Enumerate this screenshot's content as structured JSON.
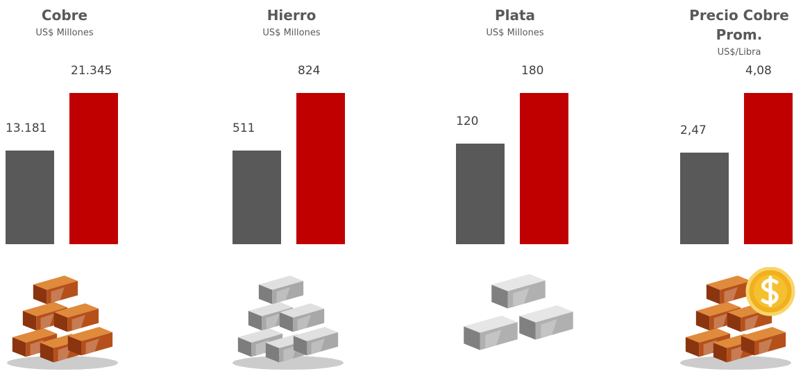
{
  "chart_data": [
    {
      "type": "bar",
      "title": "Cobre",
      "subtitle": "US$ Millones",
      "values": [
        13181,
        21345
      ],
      "value_labels": [
        "13.181",
        "21.345"
      ],
      "colors": [
        "#595959",
        "#c00000"
      ]
    },
    {
      "type": "bar",
      "title": "Hierro",
      "subtitle": "US$ Millones",
      "values": [
        511,
        824
      ],
      "colors": [
        "#595959",
        "#c00000"
      ]
    },
    {
      "type": "bar",
      "title": "Plata",
      "subtitle": "US$ Millones",
      "values": [
        120,
        180
      ],
      "colors": [
        "#595959",
        "#c00000"
      ]
    },
    {
      "type": "bar",
      "title": "Precio Cobre Prom.",
      "subtitle": "US$/Libra",
      "values": [
        2.47,
        4.08
      ],
      "value_labels": [
        "2,47",
        "4,08"
      ],
      "colors": [
        "#595959",
        "#c00000"
      ]
    }
  ]
}
